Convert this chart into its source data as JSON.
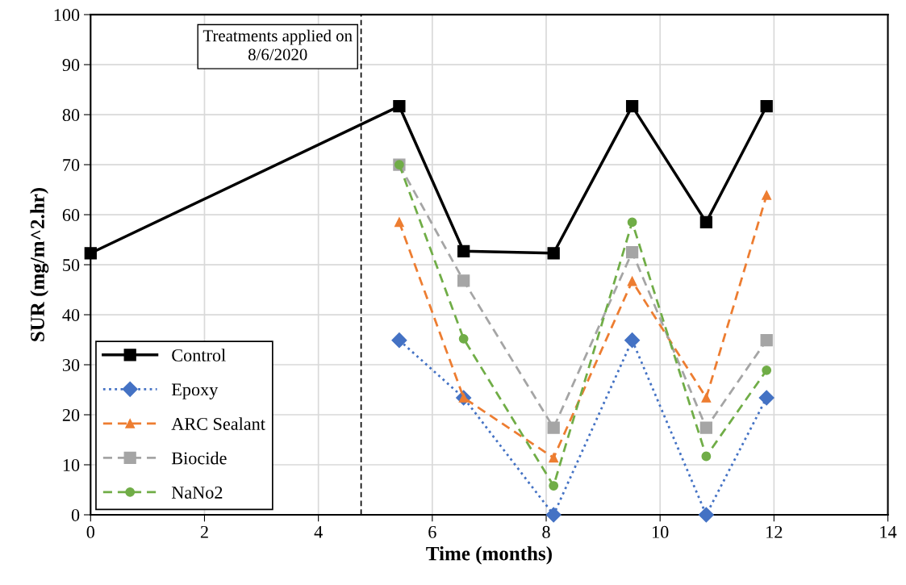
{
  "chart_data": {
    "type": "line",
    "xlabel": "Time (months)",
    "ylabel": "SUR (mg/m^2.hr)",
    "xlim": [
      0,
      14
    ],
    "xticks": [
      0,
      2,
      4,
      6,
      8,
      10,
      12,
      14
    ],
    "ylim": [
      0,
      100
    ],
    "yticks": [
      0,
      10,
      20,
      30,
      40,
      50,
      60,
      70,
      80,
      90,
      100
    ],
    "grid": true,
    "legend": "bottom left",
    "ref_lines": [
      {
        "axis": "x",
        "value": 4.75,
        "label": "Treatments applied on\n8/6/2020",
        "color": "#000000",
        "line_style": "dashed"
      }
    ],
    "series": [
      {
        "name": "Control",
        "color": "#000000",
        "marker": "square",
        "line_style": "solid",
        "x": [
          0,
          5.42,
          6.55,
          8.13,
          9.51,
          10.81,
          11.87
        ],
        "values": [
          52.3,
          81.7,
          52.7,
          52.3,
          81.7,
          58.5,
          81.7
        ]
      },
      {
        "name": "Epoxy",
        "color": "#4472c4",
        "marker": "diamond",
        "line_style": "dotted",
        "x": [
          5.42,
          6.55,
          8.13,
          9.51,
          10.81,
          11.87
        ],
        "values": [
          34.9,
          23.4,
          0,
          34.9,
          0,
          23.4
        ]
      },
      {
        "name": "ARC Sealant",
        "color": "#ed7d31",
        "marker": "triangle",
        "line_style": "dashed",
        "x": [
          5.42,
          6.55,
          8.13,
          9.51,
          10.81,
          11.87
        ],
        "values": [
          58.5,
          23.4,
          11.4,
          46.7,
          23.4,
          63.9
        ]
      },
      {
        "name": "Biocide",
        "color": "#a5a5a5",
        "marker": "square",
        "line_style": "dashed",
        "x": [
          5.42,
          6.55,
          8.13,
          9.51,
          10.81,
          11.87
        ],
        "values": [
          70,
          46.8,
          17.4,
          52.5,
          17.4,
          34.9
        ]
      },
      {
        "name": "NaNo2",
        "color": "#70ad47",
        "marker": "circle",
        "line_style": "dashed",
        "x": [
          5.42,
          6.55,
          8.13,
          9.51,
          10.81,
          11.87
        ],
        "values": [
          70,
          35.2,
          5.8,
          58.5,
          11.7,
          28.9
        ]
      }
    ]
  }
}
